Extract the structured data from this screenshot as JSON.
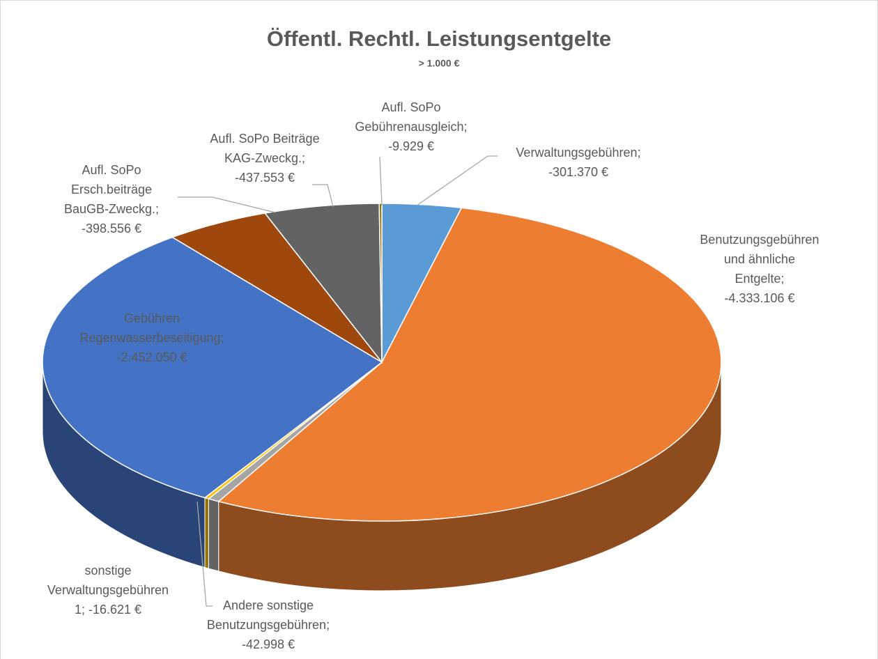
{
  "chart_data": {
    "type": "pie3d",
    "title": "Öffentl. Rechtl. Leistungsentgelte",
    "subtitle": "> 1.000 €",
    "label_separator": ";",
    "categories": [
      "Verwaltungsgebühren",
      "Benutzungsgebühren und ähnliche Entgelte",
      "Andere sonstige Benutzungsgebühren",
      "sonstige Verwaltungsgebühren 1",
      "Gebühren Regenwasserbeseitigung",
      "Aufl. SoPo Ersch.beiträge BauGB-Zweckg.",
      "Aufl. SoPo Beiträge KAG-Zweckg.",
      "Aufl. SoPo Gebührenausgleich"
    ],
    "values": [
      -301370,
      -4333106,
      -42998,
      -16621,
      -2452050,
      -398556,
      -437553,
      -9929
    ],
    "value_labels": [
      "-301.370 €",
      "-4.333.106 €",
      "-42.998 €",
      "-16.621 €",
      "-2.452.050 €",
      "-398.556 €",
      "-437.553 €",
      "-9.929 €"
    ],
    "colors": [
      "#5b9bd5",
      "#ed7d31",
      "#a5a5a5",
      "#ffc000",
      "#4472c4",
      "#9e480e",
      "#636363",
      "#997300"
    ]
  }
}
